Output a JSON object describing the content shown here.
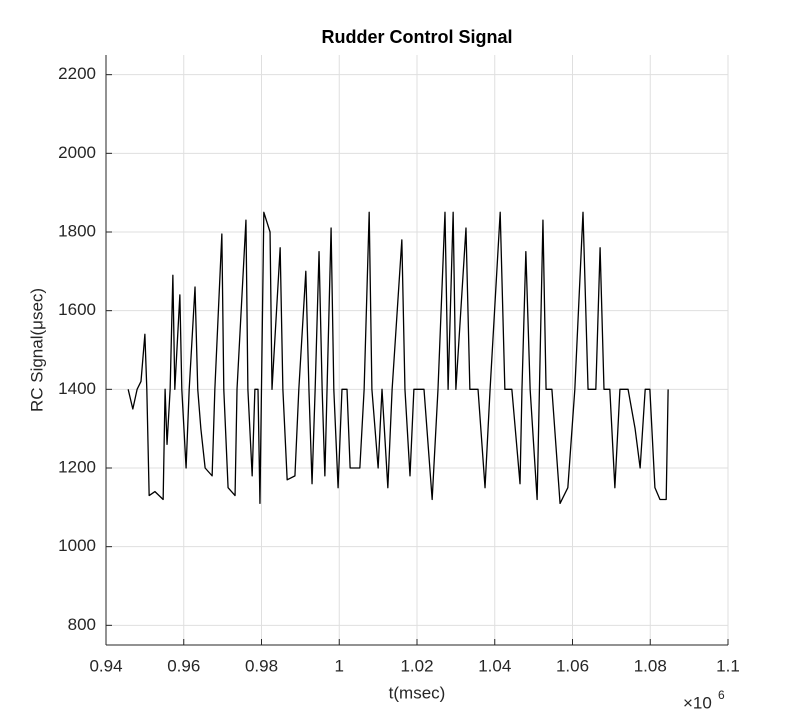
{
  "chart_data": {
    "type": "line",
    "title": "Rudder Control Signal",
    "x_label": "t(msec)",
    "y_label": "RC Signal(μsec)",
    "x_exponent_base": "×10",
    "x_exponent": "6",
    "xlim": [
      0.94,
      1.1
    ],
    "xticks": [
      0.94,
      0.96,
      0.98,
      1,
      1.02,
      1.04,
      1.06,
      1.08,
      1.1
    ],
    "ylim": [
      750,
      2250
    ],
    "yticks": [
      800,
      1000,
      1200,
      1400,
      1600,
      1800,
      2000,
      2200
    ],
    "grid": true,
    "x": [
      0.9457,
      0.9469,
      0.948,
      0.949,
      0.95,
      0.9505,
      0.9511,
      0.9526,
      0.9547,
      0.9552,
      0.9557,
      0.9565,
      0.9572,
      0.9577,
      0.959,
      0.9595,
      0.9606,
      0.9614,
      0.9629,
      0.9636,
      0.9644,
      0.9655,
      0.9673,
      0.968,
      0.9698,
      0.9703,
      0.9714,
      0.9732,
      0.9737,
      0.976,
      0.9765,
      0.9776,
      0.9783,
      0.9791,
      0.9796,
      0.9806,
      0.9822,
      0.9827,
      0.9848,
      0.9855,
      0.9866,
      0.9886,
      0.9896,
      0.9914,
      0.9922,
      0.993,
      0.9938,
      0.9948,
      0.9956,
      0.9963,
      0.9979,
      0.9986,
      0.9997,
      1.0007,
      1.002,
      1.0028,
      1.0053,
      1.0064,
      1.0077,
      1.0084,
      1.01,
      1.011,
      1.0125,
      1.0136,
      1.0161,
      1.0169,
      1.0182,
      1.0192,
      1.0208,
      1.0218,
      1.0239,
      1.0254,
      1.0272,
      1.028,
      1.0293,
      1.03,
      1.0326,
      1.0336,
      1.0357,
      1.0375,
      1.0388,
      1.0414,
      1.0426,
      1.0444,
      1.0465,
      1.047,
      1.048,
      1.0491,
      1.0509,
      1.0524,
      1.0532,
      1.0547,
      1.0568,
      1.0588,
      1.0606,
      1.0627,
      1.064,
      1.066,
      1.0671,
      1.0681,
      1.0696,
      1.0709,
      1.0722,
      1.0743,
      1.0761,
      1.0774,
      1.0787,
      1.0799,
      1.0812,
      1.0825,
      1.0841,
      1.0846
    ],
    "series": [
      {
        "color": "#000000",
        "values": [
          1400,
          1350,
          1400,
          1420,
          1540,
          1400,
          1130,
          1140,
          1120,
          1400,
          1260,
          1400,
          1690,
          1400,
          1640,
          1400,
          1200,
          1400,
          1660,
          1400,
          1300,
          1200,
          1180,
          1400,
          1795,
          1400,
          1150,
          1130,
          1400,
          1830,
          1400,
          1180,
          1400,
          1400,
          1110,
          1850,
          1800,
          1400,
          1760,
          1400,
          1170,
          1180,
          1400,
          1700,
          1400,
          1160,
          1400,
          1750,
          1400,
          1180,
          1810,
          1400,
          1150,
          1400,
          1400,
          1200,
          1200,
          1400,
          1850,
          1400,
          1200,
          1400,
          1150,
          1400,
          1780,
          1400,
          1180,
          1400,
          1400,
          1400,
          1120,
          1400,
          1850,
          1400,
          1850,
          1400,
          1810,
          1400,
          1400,
          1150,
          1400,
          1850,
          1400,
          1400,
          1160,
          1400,
          1750,
          1400,
          1120,
          1830,
          1400,
          1400,
          1110,
          1150,
          1400,
          1850,
          1400,
          1400,
          1760,
          1400,
          1400,
          1150,
          1400,
          1400,
          1300,
          1200,
          1400,
          1400,
          1150,
          1120,
          1120,
          1400
        ]
      }
    ]
  }
}
